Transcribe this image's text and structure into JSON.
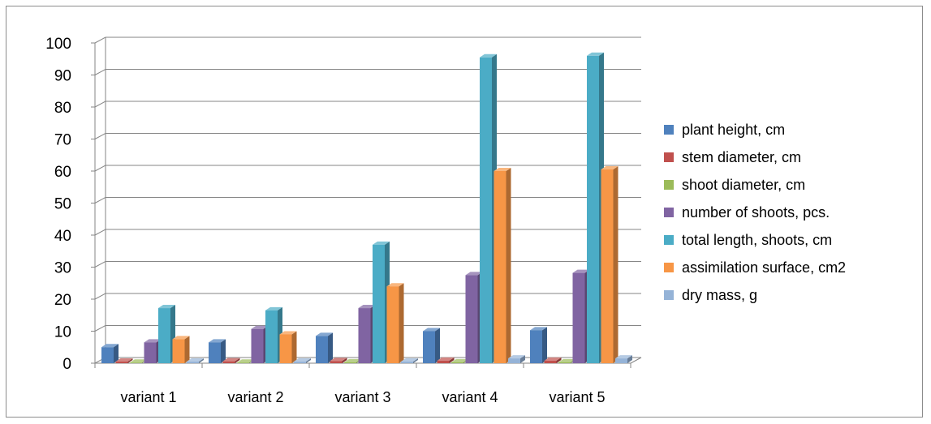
{
  "chart_data": {
    "type": "bar",
    "title": "",
    "xlabel": "",
    "ylabel": "",
    "ylim": [
      0,
      100
    ],
    "yticks": [
      0,
      10,
      20,
      30,
      40,
      50,
      60,
      70,
      80,
      90,
      100
    ],
    "grid": true,
    "legend_position": "right",
    "categories": [
      "variant 1",
      "variant 2",
      "variant 3",
      "variant 4",
      "variant 5"
    ],
    "series": [
      {
        "name": "plant height, cm",
        "color": "#4f81bd",
        "values": [
          5.0,
          6.5,
          8.5,
          10.0,
          10.3
        ]
      },
      {
        "name": "stem diameter, cm",
        "color": "#c0504d",
        "values": [
          0.5,
          0.6,
          0.7,
          0.8,
          0.8
        ]
      },
      {
        "name": "shoot diameter, cm",
        "color": "#9bbb59",
        "values": [
          0.2,
          0.2,
          0.3,
          0.3,
          0.3
        ]
      },
      {
        "name": "number of shoots, pcs.",
        "color": "#8064a2",
        "values": [
          6.5,
          10.7,
          17.2,
          27.5,
          28.2
        ]
      },
      {
        "name": "total length, shoots, cm",
        "color": "#4bacc6",
        "values": [
          17.2,
          16.5,
          37.0,
          95.5,
          96.0
        ]
      },
      {
        "name": "assimilation  surface, cm2",
        "color": "#f79646",
        "values": [
          7.5,
          9.0,
          24.0,
          60.0,
          60.5
        ]
      },
      {
        "name": "dry mass,  g",
        "color": "#95b3d7",
        "values": [
          0.5,
          0.5,
          0.5,
          1.5,
          1.5
        ]
      }
    ]
  }
}
